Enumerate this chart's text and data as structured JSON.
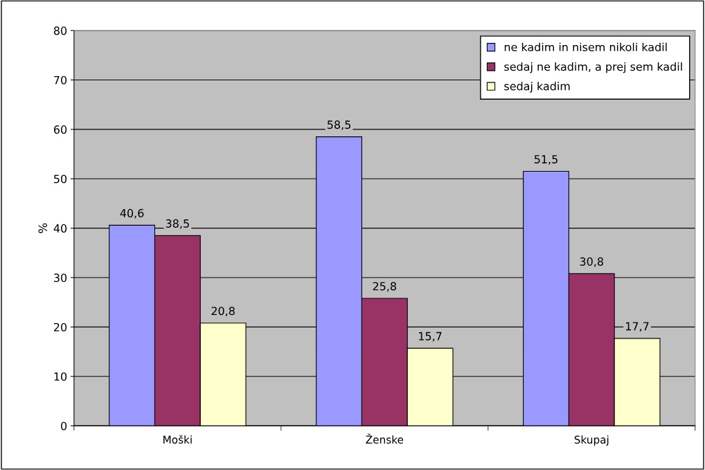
{
  "chart_data": {
    "type": "bar",
    "ylabel": "%",
    "categories": [
      "Moški",
      "Ženske",
      "Skupaj"
    ],
    "series": [
      {
        "name": "ne kadim in nisem nikoli kadil",
        "color": "#9999ff",
        "values": [
          40.6,
          58.5,
          51.5
        ],
        "value_labels": [
          "40,6",
          "58,5",
          "51,5"
        ]
      },
      {
        "name": "sedaj ne kadim, a prej sem kadil",
        "color": "#993366",
        "values": [
          38.5,
          25.8,
          30.8
        ],
        "value_labels": [
          "38,5",
          "25,8",
          "30,8"
        ]
      },
      {
        "name": "sedaj kadim",
        "color": "#ffffcc",
        "values": [
          20.8,
          15.7,
          17.7
        ],
        "value_labels": [
          "20,8",
          "15,7",
          "17,7"
        ]
      }
    ],
    "ylim": [
      0,
      80
    ],
    "yticks": [
      0,
      10,
      20,
      30,
      40,
      50,
      60,
      70,
      80
    ],
    "grid": "y",
    "legend": "top right"
  }
}
